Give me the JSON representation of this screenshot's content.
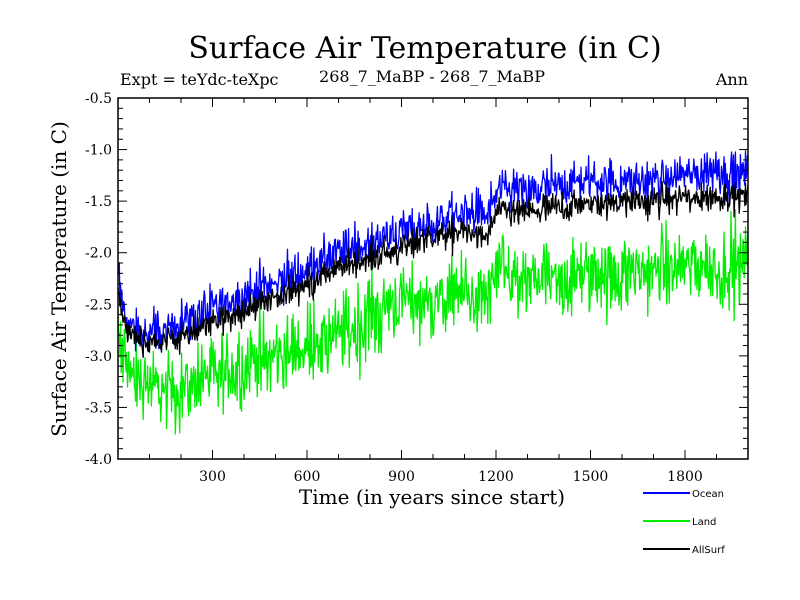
{
  "chart_data": {
    "type": "line",
    "title": "Surface Air Temperature (in C)",
    "subtitle_left": "Expt = teYdc-teXpc",
    "subtitle_center": "268_7_MaBP - 268_7_MaBP",
    "subtitle_right": "Ann",
    "xlabel": "Time (in years since start)",
    "ylabel": "Surface Air Temperature (in C)",
    "xlim": [
      0,
      2000
    ],
    "ylim": [
      -4.0,
      -0.5
    ],
    "xticks": [
      300,
      600,
      900,
      1200,
      1500,
      1800
    ],
    "xtick_labels": [
      "300",
      "600",
      "900",
      "1200",
      "1500",
      "1800"
    ],
    "yticks": [
      -4.0,
      -3.5,
      -3.0,
      -2.5,
      -2.0,
      -1.5,
      -1.0,
      -0.5
    ],
    "ytick_labels": [
      "-4.0",
      "-3.5",
      "-3.0",
      "-2.5",
      "-2.0",
      "-1.5",
      "-1.0",
      "-0.5"
    ],
    "legend_position": "bottom-right, outside plot",
    "series": [
      {
        "name": "Ocean",
        "color": "#0000ff",
        "noise": 0.12,
        "x": [
          0,
          20,
          50,
          100,
          150,
          200,
          300,
          400,
          500,
          600,
          700,
          800,
          900,
          1000,
          1100,
          1180,
          1200,
          1300,
          1400,
          1500,
          1600,
          1700,
          1800,
          1900,
          2000
        ],
        "values": [
          -2.25,
          -2.6,
          -2.75,
          -2.8,
          -2.75,
          -2.65,
          -2.55,
          -2.4,
          -2.3,
          -2.15,
          -2.0,
          -1.9,
          -1.8,
          -1.7,
          -1.6,
          -1.65,
          -1.4,
          -1.4,
          -1.35,
          -1.3,
          -1.3,
          -1.3,
          -1.25,
          -1.2,
          -1.25
        ]
      },
      {
        "name": "Land",
        "color": "#00ee00",
        "noise": 0.22,
        "x": [
          0,
          20,
          50,
          100,
          150,
          200,
          300,
          400,
          500,
          600,
          700,
          800,
          900,
          1000,
          1100,
          1180,
          1200,
          1300,
          1400,
          1500,
          1600,
          1700,
          1800,
          1900,
          2000
        ],
        "values": [
          -2.8,
          -3.0,
          -3.2,
          -3.3,
          -3.3,
          -3.3,
          -3.2,
          -3.1,
          -3.0,
          -2.9,
          -2.8,
          -2.6,
          -2.5,
          -2.45,
          -2.4,
          -2.45,
          -2.2,
          -2.25,
          -2.25,
          -2.2,
          -2.2,
          -2.2,
          -2.15,
          -2.15,
          -2.1
        ]
      },
      {
        "name": "AllSurf",
        "color": "#000000",
        "noise": 0.08,
        "x": [
          0,
          20,
          50,
          100,
          150,
          200,
          300,
          400,
          500,
          600,
          700,
          800,
          900,
          1000,
          1100,
          1180,
          1200,
          1300,
          1400,
          1500,
          1600,
          1700,
          1800,
          1900,
          2000
        ],
        "values": [
          -2.4,
          -2.7,
          -2.8,
          -2.9,
          -2.85,
          -2.8,
          -2.7,
          -2.55,
          -2.45,
          -2.3,
          -2.15,
          -2.05,
          -1.95,
          -1.85,
          -1.78,
          -1.85,
          -1.6,
          -1.6,
          -1.57,
          -1.52,
          -1.5,
          -1.5,
          -1.47,
          -1.45,
          -1.45
        ]
      }
    ]
  }
}
